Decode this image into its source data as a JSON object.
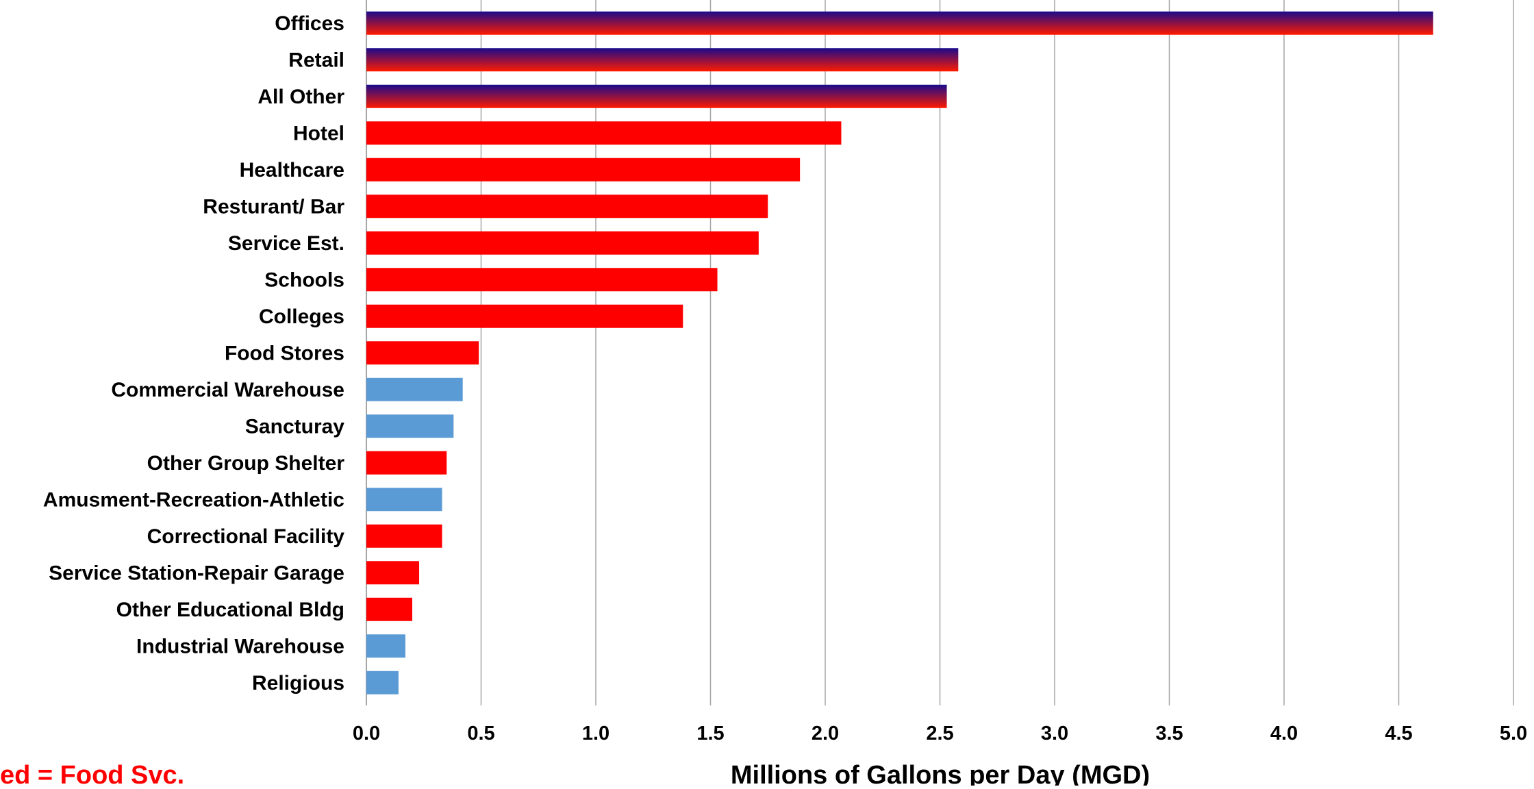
{
  "chart_data": {
    "type": "bar",
    "orientation": "horizontal",
    "categories": [
      "Offices",
      "Retail",
      "All Other",
      "Hotel",
      "Healthcare",
      "Resturant/ Bar",
      "Service Est.",
      "Schools",
      "Colleges",
      "Food Stores",
      "Commercial Warehouse",
      "Sancturay",
      "Other Group Shelter",
      "Amusment-Recreation-Athletic",
      "Correctional Facility",
      "Service Station-Repair Garage",
      "Other Educational Bldg",
      "Industrial Warehouse",
      "Religious"
    ],
    "values": [
      4.65,
      2.58,
      2.53,
      2.07,
      1.89,
      1.75,
      1.71,
      1.53,
      1.38,
      0.49,
      0.42,
      0.38,
      0.35,
      0.33,
      0.33,
      0.23,
      0.2,
      0.17,
      0.14
    ],
    "bar_styles": [
      "gradient",
      "gradient",
      "gradient",
      "red",
      "red",
      "red",
      "red",
      "red",
      "red",
      "red",
      "blue",
      "blue",
      "red",
      "blue",
      "red",
      "red",
      "red",
      "blue",
      "blue"
    ],
    "colors": {
      "red": "#ff0000",
      "blue": "#5b9bd5",
      "gradient_top": "#1a0a8c",
      "gradient_bottom": "#ff1a00",
      "grid": "#a6a6a6",
      "note": "#ff0000"
    },
    "xlim": [
      0,
      5
    ],
    "x_ticks": [
      "0.0",
      "0.5",
      "1.0",
      "1.5",
      "2.0",
      "2.5",
      "3.0",
      "3.5",
      "4.0",
      "4.5",
      "5.0"
    ],
    "xlabel": "Millions of Gallons per Day (MGD)",
    "ylabel": "",
    "title": "",
    "grid": true,
    "annotation": "ed = Food Svc."
  }
}
